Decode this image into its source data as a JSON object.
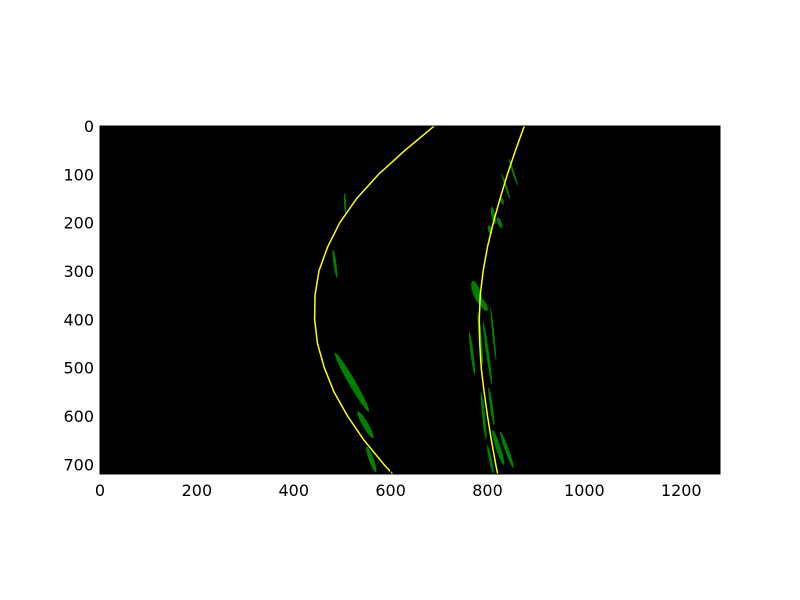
{
  "chart_data": {
    "type": "line",
    "title": "",
    "xlabel": "",
    "ylabel": "",
    "xlim": [
      0,
      1280
    ],
    "ylim": [
      720,
      0
    ],
    "y_axis_inverted": true,
    "grid": false,
    "background_color": "#000000",
    "xticks": [
      {
        "value": 0,
        "label": "0"
      },
      {
        "value": 200,
        "label": "200"
      },
      {
        "value": 400,
        "label": "400"
      },
      {
        "value": 600,
        "label": "600"
      },
      {
        "value": 800,
        "label": "800"
      },
      {
        "value": 1000,
        "label": "1000"
      },
      {
        "value": 1200,
        "label": "1200"
      }
    ],
    "yticks": [
      {
        "value": 0,
        "label": "0"
      },
      {
        "value": 100,
        "label": "100"
      },
      {
        "value": 200,
        "label": "200"
      },
      {
        "value": 300,
        "label": "300"
      },
      {
        "value": 400,
        "label": "400"
      },
      {
        "value": 500,
        "label": "500"
      },
      {
        "value": 600,
        "label": "600"
      },
      {
        "value": 700,
        "label": "700"
      }
    ],
    "series": [
      {
        "color": "#ffff00",
        "points": [
          {
            "x": 690,
            "y": 0
          },
          {
            "x": 630,
            "y": 50
          },
          {
            "x": 575,
            "y": 100
          },
          {
            "x": 530,
            "y": 150
          },
          {
            "x": 495,
            "y": 200
          },
          {
            "x": 470,
            "y": 250
          },
          {
            "x": 452,
            "y": 300
          },
          {
            "x": 444,
            "y": 350
          },
          {
            "x": 443,
            "y": 400
          },
          {
            "x": 449,
            "y": 450
          },
          {
            "x": 463,
            "y": 500
          },
          {
            "x": 483,
            "y": 550
          },
          {
            "x": 511,
            "y": 600
          },
          {
            "x": 545,
            "y": 650
          },
          {
            "x": 586,
            "y": 700
          },
          {
            "x": 604,
            "y": 720
          }
        ]
      },
      {
        "color": "#ffff00",
        "points": [
          {
            "x": 876,
            "y": 0
          },
          {
            "x": 858,
            "y": 50
          },
          {
            "x": 841,
            "y": 100
          },
          {
            "x": 826,
            "y": 150
          },
          {
            "x": 812,
            "y": 200
          },
          {
            "x": 800,
            "y": 250
          },
          {
            "x": 791,
            "y": 300
          },
          {
            "x": 785,
            "y": 350
          },
          {
            "x": 783,
            "y": 400
          },
          {
            "x": 784,
            "y": 450
          },
          {
            "x": 787,
            "y": 500
          },
          {
            "x": 793,
            "y": 550
          },
          {
            "x": 800,
            "y": 600
          },
          {
            "x": 808,
            "y": 650
          },
          {
            "x": 817,
            "y": 700
          },
          {
            "x": 821,
            "y": 720
          }
        ]
      }
    ],
    "lane_pixels": {
      "color": "#008000",
      "blobs": [
        {
          "cx": 520,
          "cy": 530,
          "rx": 70,
          "ry": 7,
          "angle": 60
        },
        {
          "cx": 548,
          "cy": 618,
          "rx": 32,
          "ry": 6,
          "angle": 60
        },
        {
          "cx": 560,
          "cy": 690,
          "rx": 28,
          "ry": 5,
          "angle": 70
        },
        {
          "cx": 485,
          "cy": 285,
          "rx": 30,
          "ry": 3,
          "angle": 82
        },
        {
          "cx": 506,
          "cy": 160,
          "rx": 22,
          "ry": 2,
          "angle": 88
        },
        {
          "cx": 778,
          "cy": 345,
          "rx": 26,
          "ry": 8,
          "angle": 70
        },
        {
          "cx": 792,
          "cy": 370,
          "rx": 14,
          "ry": 6,
          "angle": 60
        },
        {
          "cx": 768,
          "cy": 470,
          "rx": 45,
          "ry": 3,
          "angle": 83
        },
        {
          "cx": 785,
          "cy": 440,
          "rx": 55,
          "ry": 3,
          "angle": 85
        },
        {
          "cx": 800,
          "cy": 470,
          "rx": 65,
          "ry": 3,
          "angle": 82
        },
        {
          "cx": 812,
          "cy": 430,
          "rx": 55,
          "ry": 2,
          "angle": 84
        },
        {
          "cx": 808,
          "cy": 580,
          "rx": 40,
          "ry": 3,
          "angle": 82
        },
        {
          "cx": 792,
          "cy": 600,
          "rx": 50,
          "ry": 3,
          "angle": 84
        },
        {
          "cx": 822,
          "cy": 665,
          "rx": 38,
          "ry": 5,
          "angle": 72
        },
        {
          "cx": 840,
          "cy": 670,
          "rx": 40,
          "ry": 4,
          "angle": 70
        },
        {
          "cx": 806,
          "cy": 690,
          "rx": 30,
          "ry": 3,
          "angle": 78
        },
        {
          "cx": 812,
          "cy": 185,
          "rx": 18,
          "ry": 4,
          "angle": 78
        },
        {
          "cx": 825,
          "cy": 200,
          "rx": 12,
          "ry": 4,
          "angle": 70
        },
        {
          "cx": 805,
          "cy": 215,
          "rx": 10,
          "ry": 4,
          "angle": 75
        },
        {
          "cx": 838,
          "cy": 125,
          "rx": 28,
          "ry": 2,
          "angle": 72
        },
        {
          "cx": 853,
          "cy": 95,
          "rx": 30,
          "ry": 2,
          "angle": 72
        },
        {
          "cx": 830,
          "cy": 155,
          "rx": 8,
          "ry": 3,
          "angle": 70
        }
      ]
    }
  }
}
